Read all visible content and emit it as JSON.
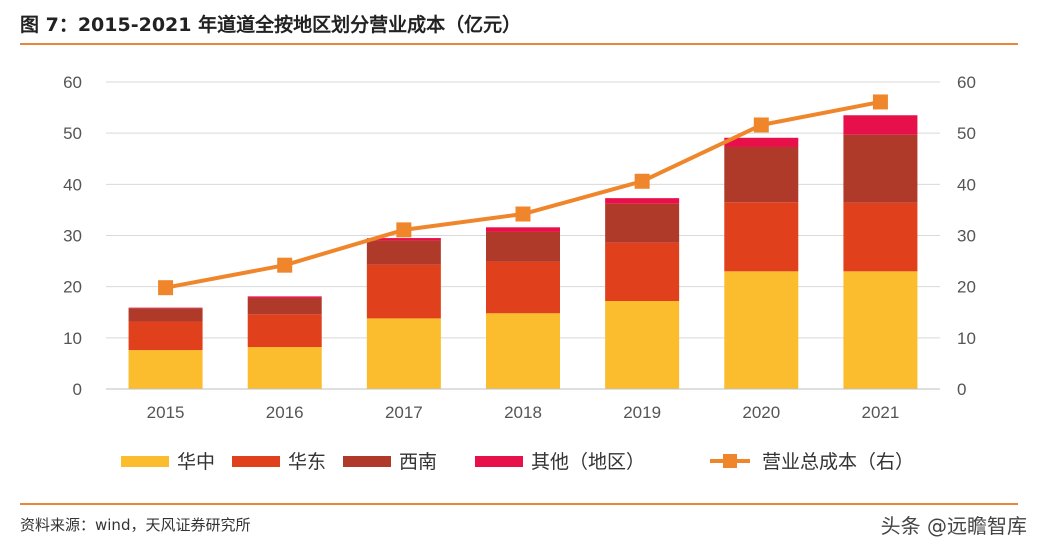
{
  "figure": {
    "title": "图 7：2015-2021 年道道全按地区划分营业成本（亿元）",
    "source": "资料来源：wind，天风证券研究所",
    "watermark": "头条 @远瞻智库"
  },
  "chart_data": {
    "type": "bar",
    "stacked": true,
    "categories": [
      "2015",
      "2016",
      "2017",
      "2018",
      "2019",
      "2020",
      "2021"
    ],
    "series": [
      {
        "name": "华中",
        "type": "bar",
        "color": "#fbbc2e",
        "values": [
          7.6,
          8.2,
          13.8,
          14.8,
          17.2,
          23.0,
          23.0
        ]
      },
      {
        "name": "华东",
        "type": "bar",
        "color": "#e0401b",
        "values": [
          5.6,
          6.4,
          10.5,
          10.1,
          11.4,
          13.5,
          13.4
        ]
      },
      {
        "name": "西南",
        "type": "bar",
        "color": "#b03a2a",
        "values": [
          2.6,
          3.2,
          4.7,
          5.8,
          7.6,
          10.8,
          13.3
        ]
      },
      {
        "name": "其他（地区）",
        "type": "bar",
        "color": "#e8104a",
        "values": [
          0.1,
          0.3,
          0.5,
          0.9,
          1.1,
          1.8,
          3.8
        ]
      },
      {
        "name": "营业总成本（右）",
        "type": "line",
        "axis": "right",
        "color": "#f0862b",
        "values": [
          19.8,
          24.2,
          31.1,
          34.2,
          40.6,
          51.6,
          56.1
        ]
      }
    ],
    "yticks": [
      "0",
      "10",
      "20",
      "30",
      "40",
      "50",
      "60"
    ],
    "ylim": [
      0,
      60
    ],
    "y2ticks": [
      "0",
      "10",
      "20",
      "30",
      "40",
      "50",
      "60"
    ],
    "y2lim": [
      0,
      60
    ],
    "grid": true,
    "legend_position": "bottom"
  }
}
